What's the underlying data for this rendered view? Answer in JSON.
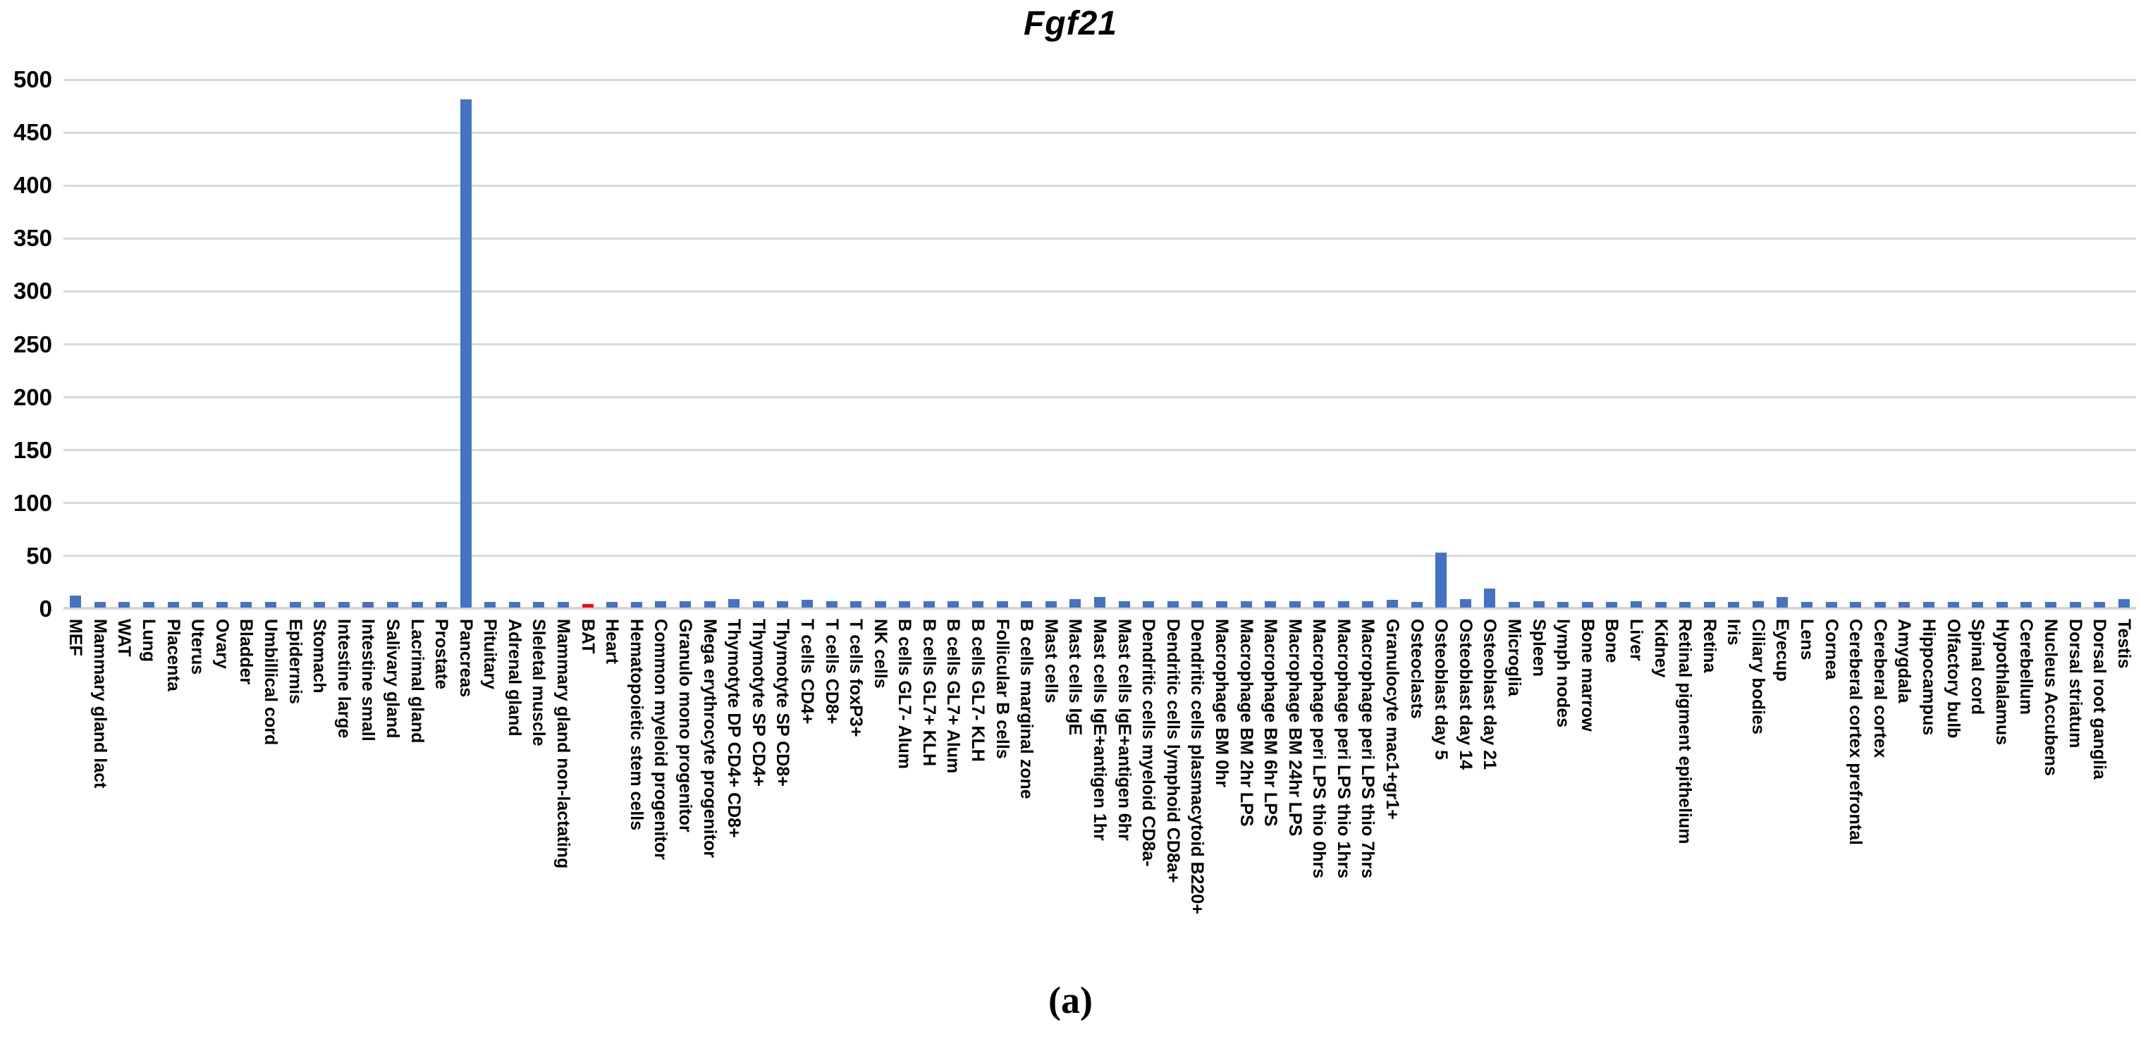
{
  "title": "Fgf21",
  "caption": "(a)",
  "chart_data": {
    "type": "bar",
    "title": "Fgf21",
    "xlabel": "",
    "ylabel": "",
    "ylim": [
      0,
      500
    ],
    "ytick_step": 50,
    "ytick_labels": [
      "0",
      "50",
      "100",
      "150",
      "200",
      "250",
      "300",
      "350",
      "400",
      "450",
      "500"
    ],
    "grid": true,
    "legend": false,
    "bar_color": "#4472C4",
    "highlight_index": 21,
    "highlight_color": "#FF0000",
    "gridline_color": "#D9D9D9",
    "categories": [
      "MEF",
      "Mammary gland lact",
      "WAT",
      "Lung",
      "Placenta",
      "Uterus",
      "Ovary",
      "Bladder",
      "Umbillical cord",
      "Epidermis",
      "Stomach",
      "Intestine large",
      "Intestine small",
      "Salivary gland",
      "Lacrimal gland",
      "Prostate",
      "Pancreas",
      "Pituitary",
      "Adrenal gland",
      "Sleletal muscle",
      "Mammary gland non-lactating",
      "BAT",
      "Heart",
      "Hematopoietic stem cells",
      "Common myeloid progenitor",
      "Granulo mono progenitor",
      "Mega erythrocyte progenitor",
      "Thymotyte DP CD4+ CD8+",
      "Thymotyte SP CD4+",
      "Thymotyte SP CD8+",
      "T cells CD4+",
      "T cells CD8+",
      "T cells foxP3+",
      "NK cells",
      "B cells GL7- Alum",
      "B cells GL7+ KLH",
      "B cells GL7+ Alum",
      "B cells GL7- KLH",
      "Follicular B cells",
      "B cells marginal zone",
      "Mast cells",
      "Mast cells IgE",
      "Mast cells IgE+antigen 1hr",
      "Mast cells IgE+antigen 6hr",
      "Dendritic cells myeloid CD8a-",
      "Dendritic cells lymphoid CD8a+",
      "Dendritic cells plasmacytoid B220+",
      "Macrophage BM 0hr",
      "Macrophage BM 2hr LPS",
      "Macrophage BM 6hr LPS",
      "Macrophage BM 24hr LPS",
      "Macrophage peri LPS thio 0hrs",
      "Macrophage peri LPS thio 1hrs",
      "Macrophage peri LPS thio 7hrs",
      "Granulocyte mac1+gr1+",
      "Osteoclasts",
      "Osteoblast day 5",
      "Osteoblast day 14",
      "Osteoblast day 21",
      "Microglia",
      "Spleen",
      "lymph nodes",
      "Bone marrow",
      "Bone",
      "Liver",
      "Kidney",
      "Retinal pigment epithelium",
      "Retina",
      "Iris",
      "Ciliary bodies",
      "Eyecup",
      "Lens",
      "Cornea",
      "Cereberal cortex prefrontal",
      "Cereberal cortex",
      "Amygdala",
      "Hippocampus",
      "Olfactory bulb",
      "Spinal cord",
      "Hypothlalamus",
      "Cerebellum",
      "Nucleus Accubens",
      "Dorsal striatum",
      "Dorsal root ganglia",
      "Testis"
    ],
    "values": [
      11,
      5,
      5,
      5,
      5,
      5,
      5,
      5,
      5,
      5,
      5,
      5,
      5,
      5,
      5,
      5,
      480,
      5,
      5,
      5,
      5,
      3,
      5,
      5,
      6,
      6,
      6,
      8,
      6,
      6,
      7,
      6,
      6,
      6,
      6,
      6,
      6,
      6,
      6,
      6,
      6,
      8,
      10,
      6,
      6,
      6,
      6,
      6,
      6,
      6,
      6,
      6,
      6,
      6,
      7,
      5,
      52,
      8,
      18,
      5,
      6,
      5,
      5,
      5,
      6,
      5,
      5,
      5,
      5,
      6,
      10,
      5,
      5,
      5,
      5,
      5,
      5,
      5,
      5,
      5,
      5,
      5,
      5,
      5,
      8
    ]
  }
}
